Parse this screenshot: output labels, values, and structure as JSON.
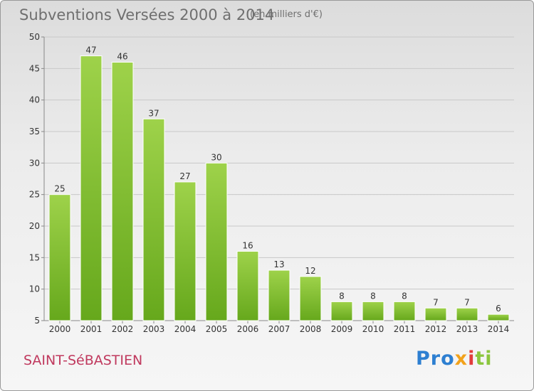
{
  "header": {
    "title": "Subventions Versées 2000 à 2014",
    "unit": "(en milliers d'€)"
  },
  "footer": {
    "commune": "SAINT-SéBASTIEN",
    "logo": "Proxiti",
    "logo_parts": [
      "Pro",
      "x",
      "i",
      "ti"
    ]
  },
  "colors": {
    "bar_light": "#9ed24a",
    "bar_dark": "#66a81c",
    "grid": "#c8c8c8",
    "title": "#6f6f6f",
    "commune": "#c0395e"
  },
  "chart_data": {
    "type": "bar",
    "title": "Subventions Versées 2000 à 2014",
    "subtitle": "(en milliers d'€)",
    "xlabel": "",
    "ylabel": "",
    "categories": [
      "2000",
      "2001",
      "2002",
      "2003",
      "2004",
      "2005",
      "2006",
      "2007",
      "2008",
      "2009",
      "2010",
      "2011",
      "2012",
      "2013",
      "2014"
    ],
    "values": [
      25,
      47,
      46,
      37,
      27,
      30,
      16,
      13,
      12,
      8,
      8,
      8,
      7,
      7,
      6
    ],
    "ylim": [
      5,
      50
    ],
    "yticks": [
      5,
      10,
      15,
      20,
      25,
      30,
      35,
      40,
      45,
      50
    ],
    "grid": true,
    "data_labels": true
  }
}
